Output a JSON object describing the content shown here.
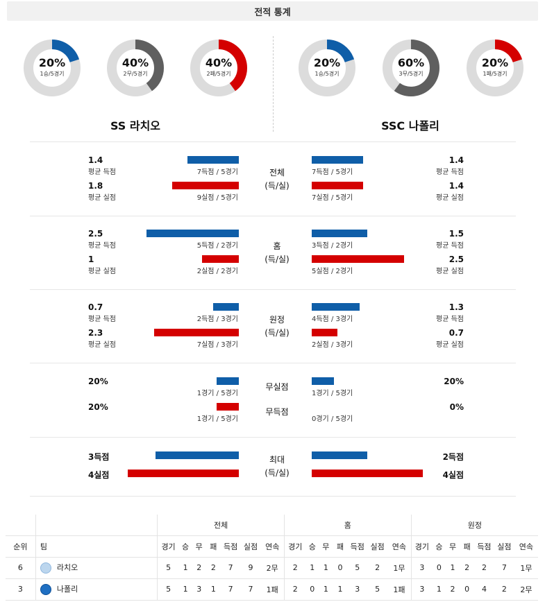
{
  "title": "전적 통계",
  "colors": {
    "blue": "#0f5ea8",
    "red": "#d40000",
    "gray": "#5f5f5f",
    "track": "#dcdcdc"
  },
  "home_team": {
    "name": "SS 라치오",
    "donuts": [
      {
        "pct": "20%",
        "sub": "1승/5경기",
        "value": 0.2,
        "color": "#0f5ea8"
      },
      {
        "pct": "40%",
        "sub": "2무/5경기",
        "value": 0.4,
        "color": "#5f5f5f"
      },
      {
        "pct": "40%",
        "sub": "2패/5경기",
        "value": 0.4,
        "color": "#d40000"
      }
    ]
  },
  "away_team": {
    "name": "SSC 나폴리",
    "donuts": [
      {
        "pct": "20%",
        "sub": "1승/5경기",
        "value": 0.2,
        "color": "#0f5ea8"
      },
      {
        "pct": "60%",
        "sub": "3무/5경기",
        "value": 0.6,
        "color": "#5f5f5f"
      },
      {
        "pct": "20%",
        "sub": "1패/5경기",
        "value": 0.2,
        "color": "#d40000"
      }
    ]
  },
  "sections": {
    "overall": {
      "label1": "전체",
      "label2": "(득/실)",
      "home_scored": {
        "val": "1.4",
        "lab": "평균 득점",
        "cap": "7득점 / 5경기",
        "frac": 0.56
      },
      "home_conceded": {
        "val": "1.8",
        "lab": "평균 실점",
        "cap": "9실점 / 5경기",
        "frac": 0.72
      },
      "away_scored": {
        "val": "1.4",
        "lab": "평균 득점",
        "cap": "7득점 / 5경기",
        "frac": 0.56
      },
      "away_conceded": {
        "val": "1.4",
        "lab": "평균 실점",
        "cap": "7실점 / 5경기",
        "frac": 0.56
      }
    },
    "home": {
      "label1": "홈",
      "label2": "(득/실)",
      "home_scored": {
        "val": "2.5",
        "lab": "평균 득점",
        "cap": "5득점 / 2경기",
        "frac": 1.0
      },
      "home_conceded": {
        "val": "1",
        "lab": "평균 실점",
        "cap": "2실점 / 2경기",
        "frac": 0.4
      },
      "away_scored": {
        "val": "1.5",
        "lab": "평균 득점",
        "cap": "3득점 / 2경기",
        "frac": 0.6
      },
      "away_conceded": {
        "val": "2.5",
        "lab": "평균 실점",
        "cap": "5실점 / 2경기",
        "frac": 1.0
      }
    },
    "away": {
      "label1": "원정",
      "label2": "(득/실)",
      "home_scored": {
        "val": "0.7",
        "lab": "평균 득점",
        "cap": "2득점 / 3경기",
        "frac": 0.28
      },
      "home_conceded": {
        "val": "2.3",
        "lab": "평균 실점",
        "cap": "7실점 / 3경기",
        "frac": 0.92
      },
      "away_scored": {
        "val": "1.3",
        "lab": "평균 득점",
        "cap": "4득점 / 3경기",
        "frac": 0.52
      },
      "away_conceded": {
        "val": "0.7",
        "lab": "평균 실점",
        "cap": "2실점 / 3경기",
        "frac": 0.28
      }
    },
    "clean_sheet": {
      "label": "무실점",
      "home": {
        "val": "20%",
        "cap": "1경기 / 5경기",
        "frac": 0.24
      },
      "away": {
        "val": "20%",
        "cap": "1경기 / 5경기",
        "frac": 0.24
      }
    },
    "no_score": {
      "label": "무득점",
      "home": {
        "val": "20%",
        "cap": "1경기 / 5경기",
        "frac": 0.24
      },
      "away": {
        "val": "0%",
        "cap": "0경기 / 5경기",
        "frac": 0
      }
    },
    "max": {
      "label1": "최대",
      "label2": "(득/실)",
      "home_scored": {
        "val": "3득점",
        "frac": 0.75
      },
      "home_conceded": {
        "val": "4실점",
        "frac": 1.0
      },
      "away_scored": {
        "val": "2득점",
        "frac": 0.5
      },
      "away_conceded": {
        "val": "4실점",
        "frac": 1.0
      }
    }
  },
  "standings": {
    "groups": [
      "전체",
      "홈",
      "원정"
    ],
    "headers": {
      "rank": "순위",
      "team": "팀",
      "cols": [
        "경기",
        "승",
        "무",
        "패",
        "득점",
        "실점",
        "연속"
      ]
    },
    "rows": [
      {
        "rank": "6",
        "team": "라치오",
        "overall": [
          "5",
          "1",
          "2",
          "2",
          "7",
          "9",
          "2무"
        ],
        "home": [
          "2",
          "1",
          "1",
          "0",
          "5",
          "2",
          "1무"
        ],
        "away": [
          "3",
          "0",
          "1",
          "2",
          "2",
          "7",
          "1무"
        ]
      },
      {
        "rank": "3",
        "team": "나폴리",
        "overall": [
          "5",
          "1",
          "3",
          "1",
          "7",
          "7",
          "1패"
        ],
        "home": [
          "2",
          "0",
          "1",
          "1",
          "3",
          "5",
          "1패"
        ],
        "away": [
          "3",
          "1",
          "2",
          "0",
          "4",
          "2",
          "2무"
        ]
      }
    ]
  }
}
